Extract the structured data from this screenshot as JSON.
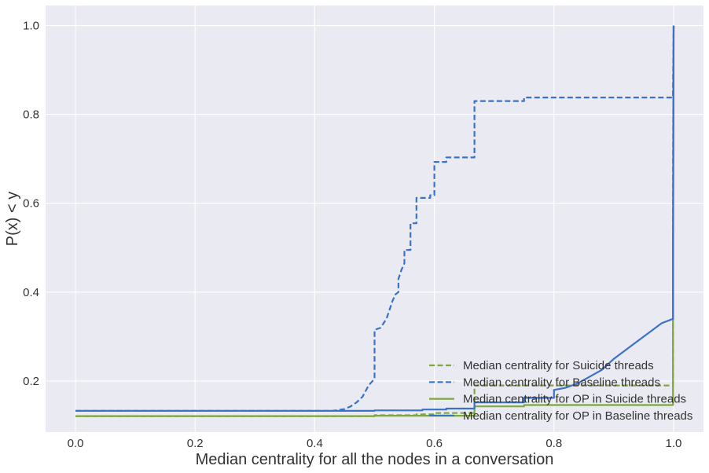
{
  "chart_data": {
    "type": "line",
    "title": "",
    "xlabel": "Median centrality for all the nodes in a conversation",
    "ylabel": "P(x) < y",
    "xlim": [
      -0.05,
      1.05
    ],
    "ylim": [
      0.085,
      1.045
    ],
    "xticks": [
      0.0,
      0.2,
      0.4,
      0.6,
      0.8,
      1.0
    ],
    "xtick_labels": [
      "0.0",
      "0.2",
      "0.4",
      "0.6",
      "0.8",
      "1.0"
    ],
    "yticks": [
      0.2,
      0.4,
      0.6,
      0.8,
      1.0
    ],
    "ytick_labels": [
      "0.2",
      "0.4",
      "0.6",
      "0.8",
      "1.0"
    ],
    "grid": true,
    "legend_position": "bottom-right",
    "colors": {
      "background": "#eaeaf2",
      "grid": "#ffffff",
      "green": "#7ea83f",
      "blue": "#3a72c8"
    },
    "series": [
      {
        "name": "Median centrality for Suicide threads",
        "color": "#7ea83f",
        "dash": true,
        "points": [
          [
            0.0,
            0.121
          ],
          [
            0.5,
            0.121
          ],
          [
            0.5,
            0.123
          ],
          [
            0.57,
            0.123
          ],
          [
            0.57,
            0.125
          ],
          [
            0.6,
            0.125
          ],
          [
            0.6,
            0.128
          ],
          [
            0.667,
            0.128
          ],
          [
            0.667,
            0.19
          ],
          [
            0.999,
            0.19
          ],
          [
            0.999,
            0.7
          ],
          [
            1.0,
            1.0
          ]
        ]
      },
      {
        "name": "Median centrality for Baseline threads",
        "color": "#3a72c8",
        "dash": true,
        "points": [
          [
            0.0,
            0.133
          ],
          [
            0.43,
            0.133
          ],
          [
            0.45,
            0.137
          ],
          [
            0.46,
            0.143
          ],
          [
            0.47,
            0.152
          ],
          [
            0.48,
            0.165
          ],
          [
            0.49,
            0.19
          ],
          [
            0.5,
            0.205
          ],
          [
            0.5,
            0.315
          ],
          [
            0.51,
            0.32
          ],
          [
            0.52,
            0.34
          ],
          [
            0.525,
            0.36
          ],
          [
            0.53,
            0.38
          ],
          [
            0.535,
            0.395
          ],
          [
            0.54,
            0.4
          ],
          [
            0.54,
            0.43
          ],
          [
            0.545,
            0.45
          ],
          [
            0.55,
            0.465
          ],
          [
            0.55,
            0.495
          ],
          [
            0.56,
            0.495
          ],
          [
            0.56,
            0.555
          ],
          [
            0.57,
            0.555
          ],
          [
            0.57,
            0.612
          ],
          [
            0.593,
            0.612
          ],
          [
            0.593,
            0.618
          ],
          [
            0.6,
            0.618
          ],
          [
            0.6,
            0.693
          ],
          [
            0.62,
            0.693
          ],
          [
            0.62,
            0.703
          ],
          [
            0.667,
            0.703
          ],
          [
            0.667,
            0.83
          ],
          [
            0.75,
            0.83
          ],
          [
            0.75,
            0.838
          ],
          [
            0.999,
            0.838
          ],
          [
            0.999,
            0.86
          ],
          [
            1.0,
            1.0
          ]
        ]
      },
      {
        "name": "Median centrality for OP in Suicide threads",
        "color": "#7ea83f",
        "dash": false,
        "points": [
          [
            0.0,
            0.121
          ],
          [
            0.5,
            0.121
          ],
          [
            0.5,
            0.122
          ],
          [
            0.667,
            0.122
          ],
          [
            0.667,
            0.143
          ],
          [
            0.75,
            0.143
          ],
          [
            0.75,
            0.146
          ],
          [
            0.999,
            0.146
          ],
          [
            0.999,
            0.33
          ],
          [
            1.0,
            1.0
          ]
        ]
      },
      {
        "name": "Median centrality for OP in Baseline threads",
        "color": "#3a72c8",
        "dash": false,
        "points": [
          [
            0.0,
            0.133
          ],
          [
            0.5,
            0.133
          ],
          [
            0.5,
            0.134
          ],
          [
            0.58,
            0.134
          ],
          [
            0.58,
            0.136
          ],
          [
            0.62,
            0.136
          ],
          [
            0.62,
            0.138
          ],
          [
            0.667,
            0.138
          ],
          [
            0.667,
            0.152
          ],
          [
            0.75,
            0.152
          ],
          [
            0.75,
            0.162
          ],
          [
            0.8,
            0.162
          ],
          [
            0.8,
            0.18
          ],
          [
            0.82,
            0.185
          ],
          [
            0.84,
            0.195
          ],
          [
            0.86,
            0.21
          ],
          [
            0.88,
            0.225
          ],
          [
            0.9,
            0.25
          ],
          [
            0.92,
            0.27
          ],
          [
            0.94,
            0.29
          ],
          [
            0.96,
            0.31
          ],
          [
            0.98,
            0.33
          ],
          [
            0.999,
            0.34
          ],
          [
            0.999,
            0.5
          ],
          [
            1.0,
            1.0
          ]
        ]
      }
    ]
  }
}
